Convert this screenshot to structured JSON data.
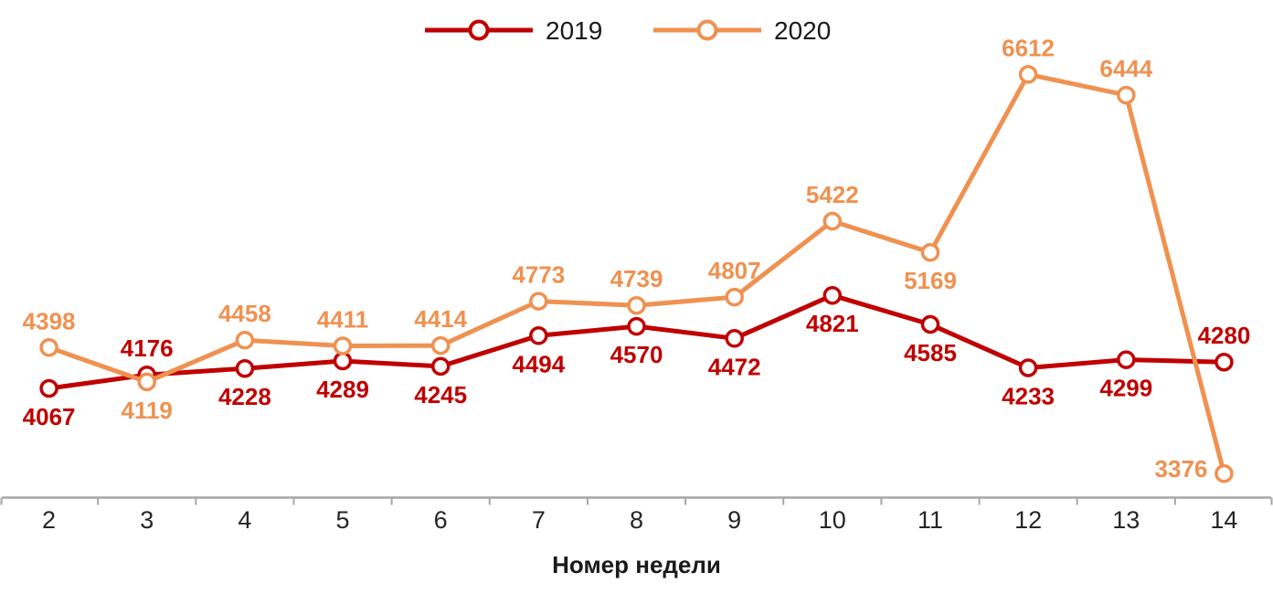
{
  "chart_data": {
    "type": "line",
    "title": "",
    "xlabel": "Номер недели",
    "ylabel": "",
    "categories": [
      "2",
      "3",
      "4",
      "5",
      "6",
      "7",
      "8",
      "9",
      "10",
      "11",
      "12",
      "13",
      "14"
    ],
    "series": [
      {
        "name": "2019",
        "color": "#C00000",
        "values": [
          4067,
          4176,
          4228,
          4289,
          4245,
          4494,
          4570,
          4472,
          4821,
          4585,
          4233,
          4299,
          4280
        ],
        "label_positions": [
          "below",
          "above",
          "below",
          "below",
          "below",
          "below",
          "below",
          "below",
          "below",
          "below",
          "below",
          "below",
          "above"
        ]
      },
      {
        "name": "2020",
        "color": "#EF9150",
        "values": [
          4398,
          4119,
          4458,
          4411,
          4414,
          4773,
          4739,
          4807,
          5422,
          5169,
          6612,
          6444,
          3376
        ],
        "label_positions": [
          "above",
          "below",
          "above",
          "above",
          "above",
          "above",
          "above",
          "above",
          "above",
          "below",
          "above",
          "above",
          "left"
        ]
      }
    ],
    "ylim": [
      3200,
      7200
    ],
    "grid": false,
    "y_axis_visible": false,
    "marker": "open-circle",
    "data_labels": true,
    "legend_position": "top-center"
  },
  "style": {
    "background": "#FFFFFF",
    "axis_color": "#A6A6A6",
    "tick_label_color": "#262626",
    "axis_title_color": "#1A1A1A",
    "legend_text_color": "#1A1A1A",
    "marker_fill": "#FFFFFF"
  }
}
